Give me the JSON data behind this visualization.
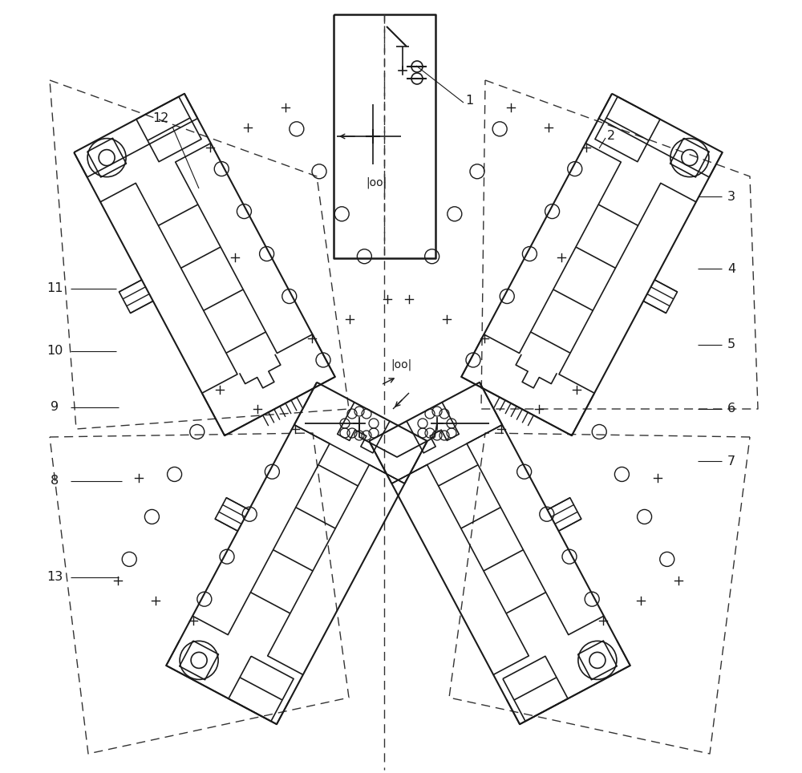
{
  "background_color": "#ffffff",
  "line_color": "#1a1a1a",
  "dashed_color": "#333333",
  "fig_width": 10.0,
  "fig_height": 9.64,
  "labels": [
    "1",
    "2",
    "3",
    "4",
    "5",
    "6",
    "7",
    "8",
    "9",
    "10",
    "11",
    "12",
    "13"
  ]
}
